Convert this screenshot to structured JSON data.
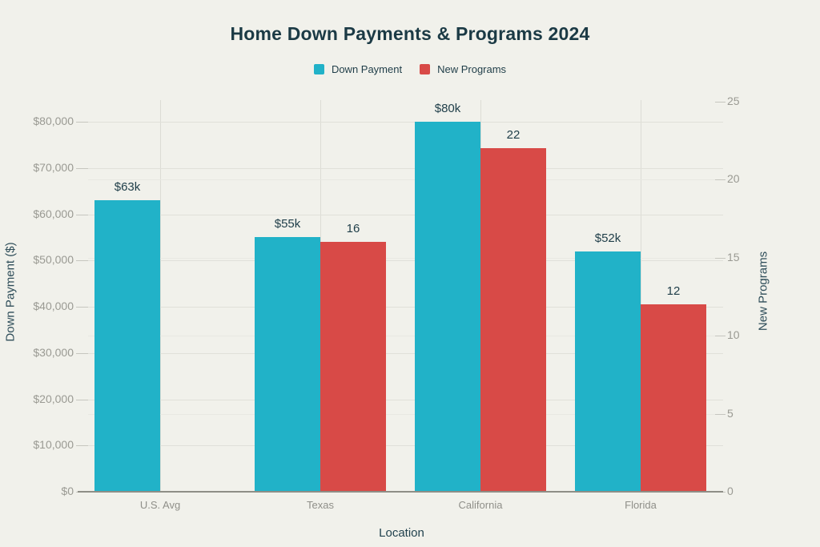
{
  "chart_data": {
    "type": "bar",
    "title": "Home Down Payments & Programs 2024",
    "xlabel": "Location",
    "ylabel_left": "Down Payment ($)",
    "ylabel_right": "New Programs",
    "categories": [
      "U.S. Avg",
      "Texas",
      "California",
      "Florida"
    ],
    "series": [
      {
        "name": "Down Payment",
        "axis": "left",
        "color": "#21b2c8",
        "values": [
          63000,
          55000,
          80000,
          52000
        ],
        "value_labels": [
          "$63k",
          "$55k",
          "$80k",
          "$52k"
        ]
      },
      {
        "name": "New Programs",
        "axis": "right",
        "color": "#d84a47",
        "values": [
          null,
          16,
          22,
          12
        ],
        "value_labels": [
          "",
          "16",
          "22",
          "12"
        ]
      }
    ],
    "left_axis": {
      "min": 0,
      "max": 80000,
      "tick_step": 10000,
      "tick_labels": [
        "$0",
        "$10,000",
        "$20,000",
        "$30,000",
        "$40,000",
        "$50,000",
        "$60,000",
        "$70,000",
        "$80,000"
      ]
    },
    "right_axis": {
      "min": 0,
      "max": 25,
      "tick_step": 5,
      "tick_labels": [
        "0",
        "5",
        "10",
        "15",
        "20",
        "25"
      ]
    },
    "grid": true,
    "legend_position": "top-center",
    "background_color": "#f1f1eb"
  }
}
